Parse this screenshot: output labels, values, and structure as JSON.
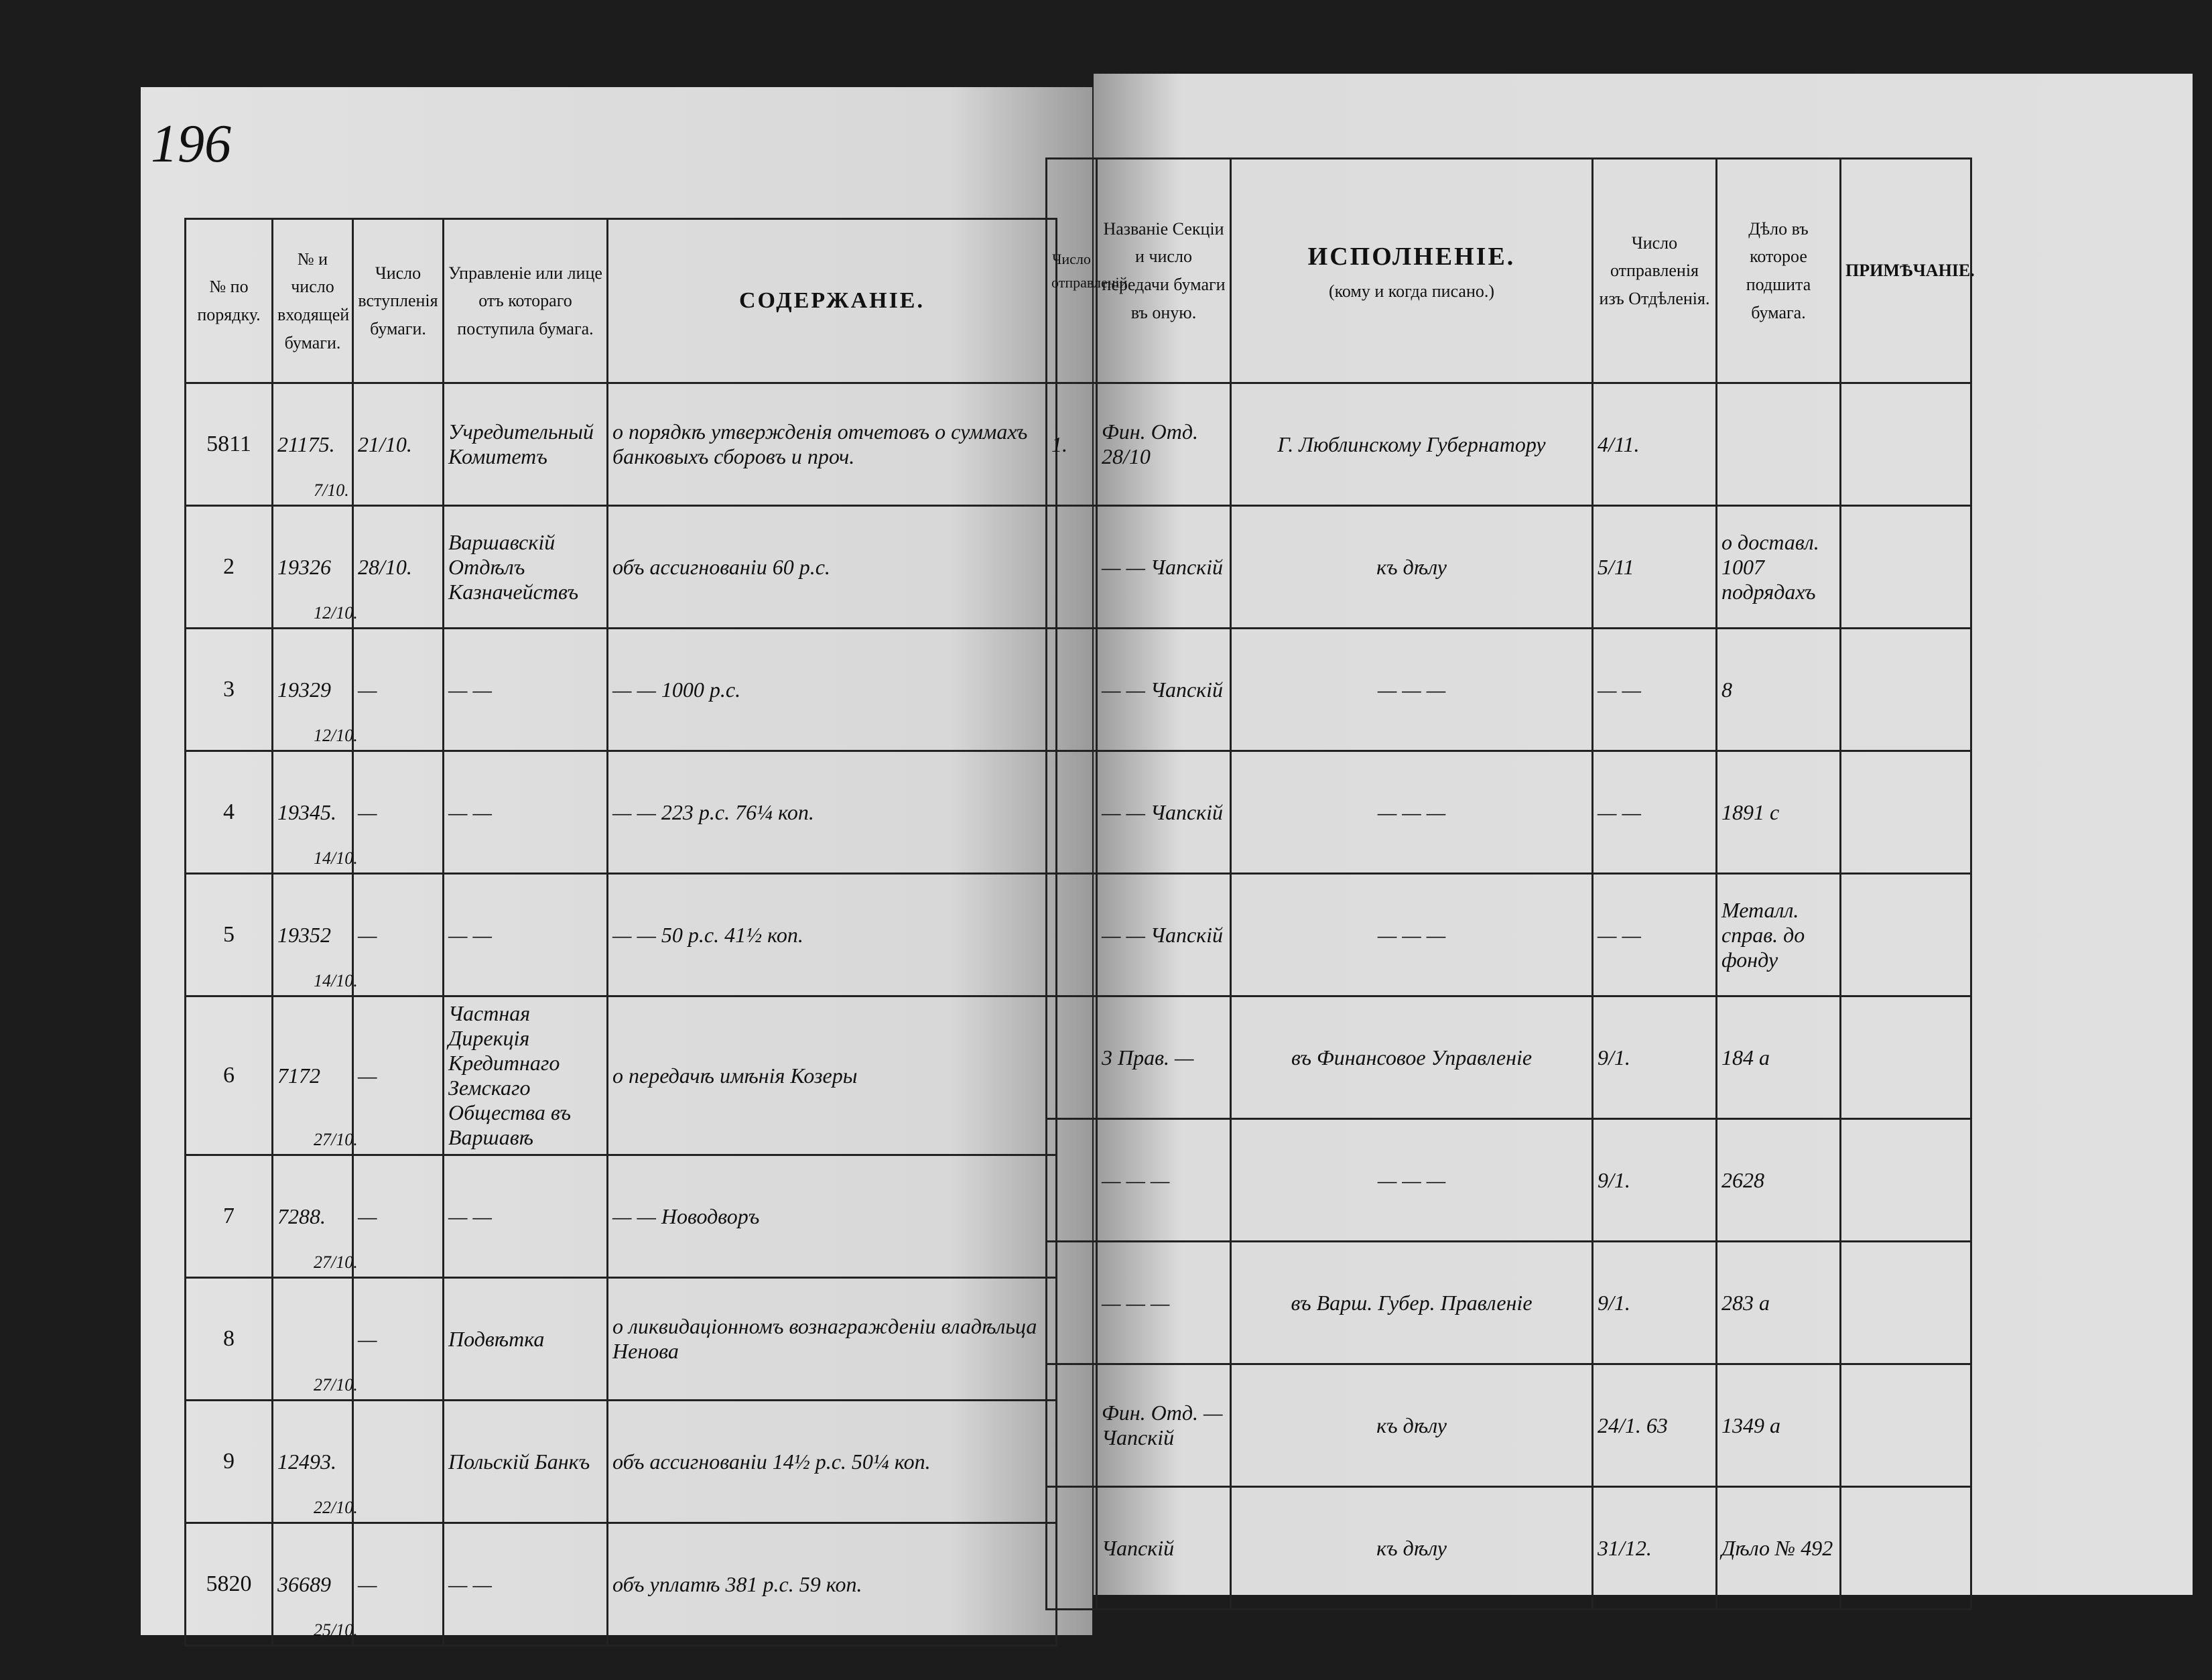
{
  "page_number": "196",
  "left_header": [
    "№ по порядку.",
    "№ и число входящей бумаги.",
    "Число вступленія бумаги.",
    "Управленіе или лице отъ котораго поступила бумага.",
    "СОДЕРЖАНІЕ."
  ],
  "right_header": {
    "sent": "Число отправленій",
    "section": "Названіе Секціи и число передачи бумаги въ оную.",
    "execution": "ИСПОЛНЕНІЕ.",
    "execution_sub": "(кому и когда писано.)",
    "out": "Число отправленія изъ Отдѣленія.",
    "case": "Дѣло въ которое подшита бумага.",
    "note": "ПРИМѢЧАНІЕ."
  },
  "rows": [
    {
      "num": "5811",
      "incoming": "21175.",
      "incoming_date": "7/10.",
      "entry": "21/10.",
      "source": "Учредительный Комитетъ",
      "content": "о порядкѣ утвержденія отчетовъ о суммахъ банковыхъ сборовъ и проч.",
      "sent": "1.",
      "section": "Фин. Отд. 28/10",
      "execution": "Г. Люблинскому Губернатору",
      "out": "4/11."
    },
    {
      "num": "2",
      "incoming": "19326",
      "incoming_date": "12/10.",
      "entry": "28/10.",
      "source": "Варшавскій Отдѣлъ Казначействъ",
      "content": "объ ассигнованіи 60 р.с.",
      "section": "— — Чапскій",
      "execution": "къ дѣлу",
      "out": "5/11",
      "case": "о доставл. 1007 подрядахъ"
    },
    {
      "num": "3",
      "incoming": "19329",
      "incoming_date": "12/10.",
      "entry": "—",
      "source": "— —",
      "content": "— — 1000 р.с.",
      "section": "— — Чапскій",
      "execution": "— — —",
      "out": "— —",
      "case": "8"
    },
    {
      "num": "4",
      "incoming": "19345.",
      "incoming_date": "14/10.",
      "entry": "—",
      "source": "— —",
      "content": "— — 223 р.с. 76¼ коп.",
      "section": "— — Чапскій",
      "execution": "— — —",
      "out": "— —",
      "case": "1891 с"
    },
    {
      "num": "5",
      "incoming": "19352",
      "incoming_date": "14/10.",
      "entry": "—",
      "source": "— —",
      "content": "— — 50 р.с. 41½ коп.",
      "section": "— — Чапскій",
      "execution": "— — —",
      "out": "— —",
      "case": "Металл. справ. до фонду"
    },
    {
      "num": "6",
      "incoming": "7172",
      "incoming_date": "27/10.",
      "entry": "—",
      "source": "Частная Дирекція Кредитнаго Земскаго Общества въ Варшавѣ",
      "content": "о передачѣ имѣнія Козеры",
      "section": "3 Прав. —",
      "execution": "въ Финансовое Управленіе",
      "out": "9/1.",
      "case": "184 а"
    },
    {
      "num": "7",
      "incoming": "7288.",
      "incoming_date": "27/10.",
      "entry": "—",
      "source": "— —",
      "content": "— — Новодворъ",
      "section": "— — —",
      "execution": "— — —",
      "out": "9/1.",
      "case": "2628"
    },
    {
      "num": "8",
      "incoming_date": "27/10.",
      "entry": "—",
      "source": "Подвѣтка",
      "content": "о ликвидаціонномъ вознагражденіи владѣльца Ненова",
      "section": "— — —",
      "execution": "въ Варш. Губер. Правленіе",
      "out": "9/1.",
      "case": "283 а"
    },
    {
      "num": "9",
      "incoming": "12493.",
      "incoming_date": "22/10.",
      "source": "Польскій Банкъ",
      "content": "объ ассигнованіи 14½ р.с. 50¼ коп.",
      "section": "Фин. Отд. — Чапскій",
      "execution": "къ дѣлу",
      "out": "24/1. 63",
      "case": "1349 а"
    },
    {
      "num": "5820",
      "incoming": "36689",
      "incoming_date": "25/10.",
      "entry": "—",
      "source": "— —",
      "content": "объ уплатѣ 381 р.с. 59 коп.",
      "section": "Чапскій",
      "execution": "къ дѣлу",
      "out": "31/12.",
      "case": "Дѣло № 492"
    }
  ]
}
